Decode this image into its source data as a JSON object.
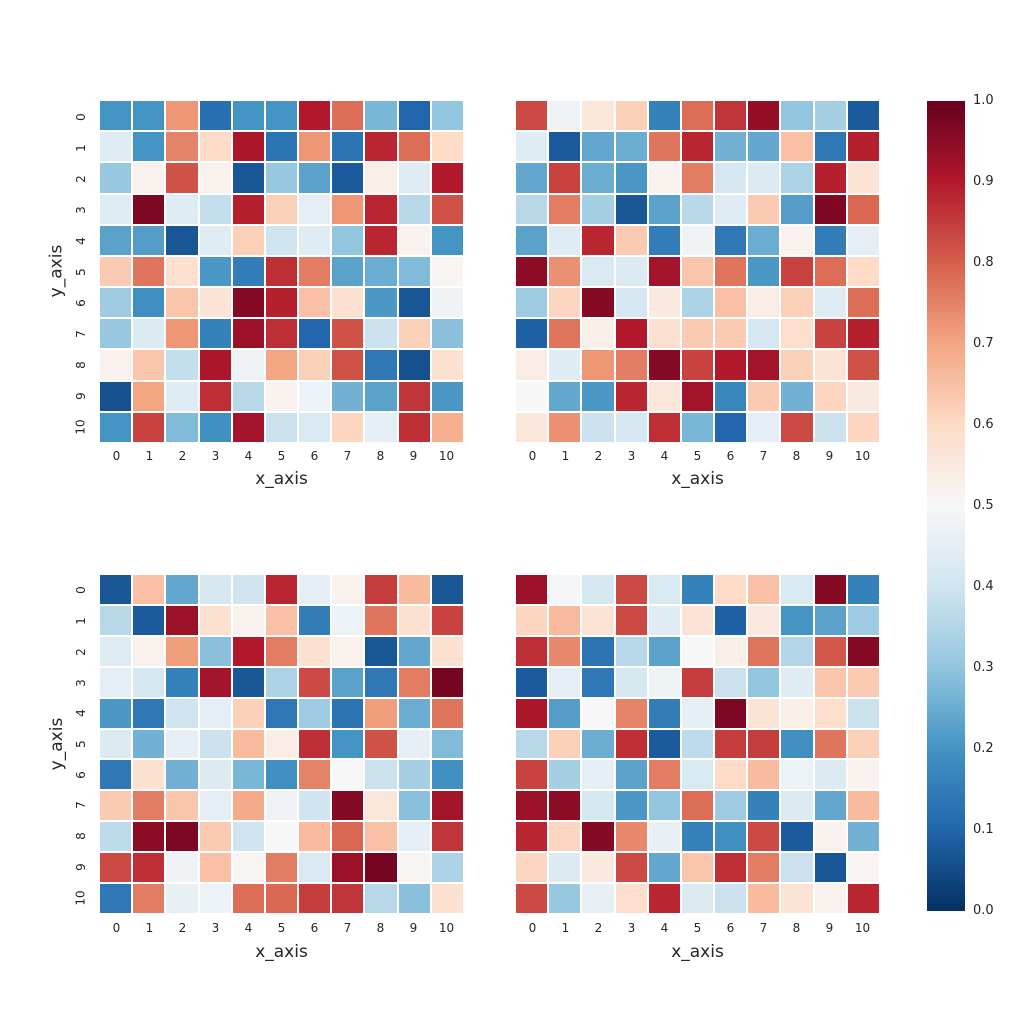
{
  "figure": {
    "background": "#ffffff",
    "text_color": "#262626"
  },
  "chart_data": {
    "type": "heatmap",
    "layout": "2x2 grid of 11x11 heatmap subplots sharing one vertical colorbar on the right",
    "title": "",
    "xlabel": "x_axis",
    "ylabel": "y_axis",
    "x_ticks": [
      "0",
      "1",
      "2",
      "3",
      "4",
      "5",
      "6",
      "7",
      "8",
      "9",
      "10"
    ],
    "y_ticks": [
      "0",
      "1",
      "2",
      "3",
      "4",
      "5",
      "6",
      "7",
      "8",
      "9",
      "10"
    ],
    "value_range": [
      0.0,
      1.0
    ],
    "grid": "white 2px lines between cells",
    "colormap": {
      "name": "RdBu_r",
      "stops": [
        "#053061",
        "#2166ac",
        "#4393c3",
        "#92c5de",
        "#d1e5f0",
        "#f7f7f7",
        "#fddbc7",
        "#f4a582",
        "#d6604d",
        "#b2182b",
        "#67001f"
      ]
    },
    "colorbar": {
      "position": "right",
      "tick_labels": [
        "1.0",
        "0.9",
        "0.8",
        "0.7",
        "0.6",
        "0.5",
        "0.4",
        "0.3",
        "0.2",
        "0.1",
        "0.0"
      ]
    },
    "subplots": [
      {
        "position": "top-left",
        "has_y_ticks": true,
        "has_y_label": true,
        "values": [
          [
            0.2,
            0.2,
            0.72,
            0.12,
            0.2,
            0.2,
            0.9,
            0.78,
            0.27,
            0.1,
            0.3
          ],
          [
            0.44,
            0.2,
            0.75,
            0.6,
            0.91,
            0.13,
            0.72,
            0.13,
            0.88,
            0.78,
            0.6
          ],
          [
            0.31,
            0.52,
            0.82,
            0.52,
            0.07,
            0.31,
            0.23,
            0.08,
            0.53,
            0.44,
            0.9
          ],
          [
            0.44,
            0.97,
            0.44,
            0.38,
            0.89,
            0.62,
            0.45,
            0.72,
            0.88,
            0.36,
            0.82
          ],
          [
            0.23,
            0.22,
            0.07,
            0.44,
            0.62,
            0.4,
            0.44,
            0.3,
            0.88,
            0.52,
            0.2
          ],
          [
            0.63,
            0.77,
            0.58,
            0.21,
            0.15,
            0.87,
            0.76,
            0.23,
            0.25,
            0.28,
            0.51
          ],
          [
            0.32,
            0.19,
            0.64,
            0.57,
            0.96,
            0.89,
            0.65,
            0.58,
            0.21,
            0.07,
            0.48
          ],
          [
            0.31,
            0.43,
            0.72,
            0.16,
            0.93,
            0.87,
            0.1,
            0.82,
            0.39,
            0.62,
            0.29
          ],
          [
            0.52,
            0.64,
            0.38,
            0.91,
            0.48,
            0.7,
            0.62,
            0.82,
            0.14,
            0.06,
            0.58
          ],
          [
            0.06,
            0.7,
            0.44,
            0.87,
            0.36,
            0.52,
            0.47,
            0.26,
            0.23,
            0.86,
            0.21
          ],
          [
            0.2,
            0.84,
            0.28,
            0.19,
            0.92,
            0.39,
            0.42,
            0.61,
            0.45,
            0.87,
            0.68
          ]
        ]
      },
      {
        "position": "top-right",
        "has_y_ticks": false,
        "has_y_label": false,
        "values": [
          [
            0.83,
            0.48,
            0.56,
            0.62,
            0.16,
            0.78,
            0.86,
            0.94,
            0.3,
            0.33,
            0.08
          ],
          [
            0.44,
            0.08,
            0.24,
            0.25,
            0.77,
            0.88,
            0.26,
            0.24,
            0.65,
            0.14,
            0.89
          ],
          [
            0.24,
            0.84,
            0.25,
            0.21,
            0.52,
            0.76,
            0.41,
            0.43,
            0.34,
            0.89,
            0.57
          ],
          [
            0.36,
            0.76,
            0.33,
            0.07,
            0.23,
            0.36,
            0.44,
            0.63,
            0.22,
            0.97,
            0.79
          ],
          [
            0.23,
            0.44,
            0.88,
            0.63,
            0.15,
            0.48,
            0.14,
            0.25,
            0.52,
            0.15,
            0.45
          ],
          [
            0.95,
            0.73,
            0.42,
            0.43,
            0.92,
            0.64,
            0.77,
            0.21,
            0.84,
            0.78,
            0.6
          ],
          [
            0.32,
            0.61,
            0.96,
            0.41,
            0.55,
            0.34,
            0.65,
            0.54,
            0.62,
            0.44,
            0.78
          ],
          [
            0.09,
            0.77,
            0.53,
            0.9,
            0.58,
            0.63,
            0.63,
            0.41,
            0.59,
            0.84,
            0.89
          ],
          [
            0.54,
            0.44,
            0.72,
            0.76,
            0.96,
            0.84,
            0.9,
            0.92,
            0.62,
            0.57,
            0.82
          ],
          [
            0.5,
            0.24,
            0.21,
            0.88,
            0.56,
            0.92,
            0.17,
            0.63,
            0.26,
            0.61,
            0.55
          ],
          [
            0.56,
            0.73,
            0.39,
            0.41,
            0.87,
            0.27,
            0.1,
            0.45,
            0.83,
            0.39,
            0.61
          ]
        ]
      },
      {
        "position": "bottom-left",
        "has_y_ticks": true,
        "has_y_label": true,
        "values": [
          [
            0.07,
            0.65,
            0.24,
            0.41,
            0.4,
            0.88,
            0.45,
            0.52,
            0.85,
            0.66,
            0.07
          ],
          [
            0.36,
            0.08,
            0.93,
            0.58,
            0.52,
            0.65,
            0.15,
            0.47,
            0.77,
            0.58,
            0.84
          ],
          [
            0.44,
            0.52,
            0.71,
            0.29,
            0.9,
            0.76,
            0.58,
            0.52,
            0.07,
            0.24,
            0.58
          ],
          [
            0.45,
            0.41,
            0.16,
            0.92,
            0.07,
            0.34,
            0.83,
            0.23,
            0.14,
            0.76,
            0.98
          ],
          [
            0.21,
            0.14,
            0.4,
            0.45,
            0.62,
            0.14,
            0.32,
            0.13,
            0.71,
            0.25,
            0.77
          ],
          [
            0.43,
            0.26,
            0.45,
            0.39,
            0.66,
            0.54,
            0.87,
            0.2,
            0.82,
            0.45,
            0.28
          ],
          [
            0.14,
            0.58,
            0.26,
            0.43,
            0.27,
            0.19,
            0.75,
            0.5,
            0.39,
            0.33,
            0.19
          ],
          [
            0.63,
            0.76,
            0.64,
            0.45,
            0.69,
            0.48,
            0.4,
            0.96,
            0.56,
            0.29,
            0.92
          ],
          [
            0.37,
            0.95,
            0.97,
            0.63,
            0.4,
            0.5,
            0.66,
            0.79,
            0.65,
            0.45,
            0.86
          ],
          [
            0.83,
            0.87,
            0.48,
            0.65,
            0.51,
            0.76,
            0.42,
            0.93,
            0.98,
            0.51,
            0.34
          ],
          [
            0.14,
            0.76,
            0.46,
            0.47,
            0.78,
            0.79,
            0.85,
            0.86,
            0.36,
            0.29,
            0.58
          ]
        ]
      },
      {
        "position": "bottom-right",
        "has_y_ticks": false,
        "has_y_label": false,
        "values": [
          [
            0.93,
            0.49,
            0.41,
            0.83,
            0.42,
            0.16,
            0.6,
            0.65,
            0.42,
            0.96,
            0.16
          ],
          [
            0.61,
            0.66,
            0.57,
            0.83,
            0.44,
            0.57,
            0.09,
            0.55,
            0.2,
            0.23,
            0.32
          ],
          [
            0.87,
            0.74,
            0.13,
            0.36,
            0.23,
            0.5,
            0.53,
            0.77,
            0.35,
            0.81,
            0.96
          ],
          [
            0.08,
            0.45,
            0.14,
            0.41,
            0.48,
            0.85,
            0.39,
            0.3,
            0.44,
            0.64,
            0.63
          ],
          [
            0.91,
            0.22,
            0.5,
            0.75,
            0.15,
            0.45,
            0.97,
            0.57,
            0.53,
            0.59,
            0.39
          ],
          [
            0.36,
            0.62,
            0.25,
            0.87,
            0.08,
            0.37,
            0.85,
            0.85,
            0.19,
            0.77,
            0.62
          ],
          [
            0.84,
            0.33,
            0.45,
            0.23,
            0.76,
            0.42,
            0.6,
            0.66,
            0.47,
            0.43,
            0.52
          ],
          [
            0.93,
            0.95,
            0.41,
            0.21,
            0.3,
            0.78,
            0.32,
            0.16,
            0.43,
            0.24,
            0.66
          ],
          [
            0.88,
            0.61,
            0.96,
            0.74,
            0.46,
            0.16,
            0.19,
            0.83,
            0.08,
            0.52,
            0.26
          ],
          [
            0.61,
            0.43,
            0.55,
            0.83,
            0.24,
            0.64,
            0.87,
            0.76,
            0.39,
            0.07,
            0.51
          ],
          [
            0.83,
            0.31,
            0.46,
            0.59,
            0.88,
            0.43,
            0.39,
            0.66,
            0.57,
            0.52,
            0.88
          ]
        ]
      }
    ]
  }
}
